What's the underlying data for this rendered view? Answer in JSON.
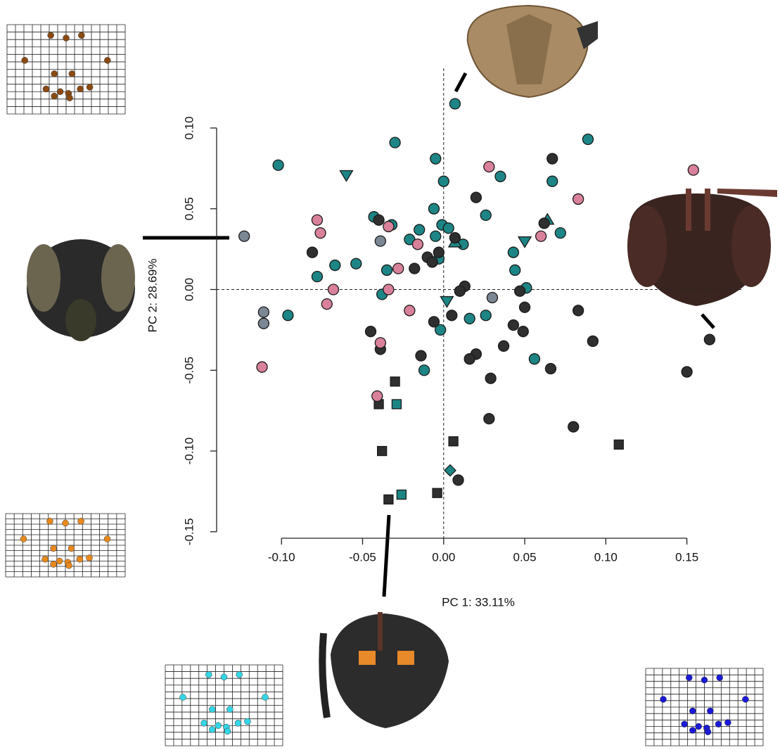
{
  "chart_data": {
    "type": "scatter",
    "x_label": "PC 1: 33.11%",
    "y_label": "PC 2: 28.69%",
    "xlim": [
      -0.14,
      0.184
    ],
    "ylim": [
      -0.154,
      0.137
    ],
    "xticks": [
      {
        "value": -0.1,
        "label": "-0.10"
      },
      -0.05,
      {
        "value": 0,
        "label": "0.00"
      },
      0.05,
      {
        "value": 0.1,
        "label": "0.10"
      },
      0.15
    ],
    "yticks": [
      -0.15,
      {
        "value": -0.1,
        "label": "-0.10"
      },
      -0.05,
      {
        "value": 0,
        "label": "0.00"
      },
      0.05,
      {
        "value": 0.1,
        "label": "0.10"
      }
    ],
    "zero_lines": true,
    "series": [
      {
        "color": "#1d8585",
        "marker": "circle",
        "x": [
          0.007,
          -0.102,
          -0.03,
          -0.005,
          0.0,
          0.035,
          0.067,
          0.089,
          0.026,
          0.072,
          -0.043,
          -0.032,
          -0.015,
          -0.006,
          -0.001,
          -0.005,
          0.003,
          0.012,
          -0.054,
          -0.067,
          -0.078,
          -0.035,
          0.043,
          0.044,
          0.051,
          -0.038,
          -0.096,
          -0.002,
          0.016,
          0.026,
          -0.012,
          0.056,
          -0.021,
          -0.003
        ],
        "values": [
          0.115,
          0.077,
          0.091,
          0.081,
          0.067,
          0.07,
          0.067,
          0.093,
          0.046,
          0.035,
          0.045,
          0.04,
          0.037,
          0.05,
          0.04,
          0.033,
          0.038,
          0.028,
          0.016,
          0.015,
          0.008,
          0.012,
          0.023,
          0.012,
          0.001,
          -0.003,
          -0.016,
          -0.025,
          -0.018,
          -0.016,
          -0.05,
          -0.043,
          0.031,
          0.019
        ]
      },
      {
        "color": "#1d8585",
        "marker": "triangle-down",
        "x": [
          -0.06,
          0.05,
          0.002
        ],
        "values": [
          0.071,
          0.03,
          -0.007
        ]
      },
      {
        "color": "#1d8585",
        "marker": "triangle-up",
        "x": [
          0.064,
          0.007
        ],
        "values": [
          0.043,
          0.029
        ]
      },
      {
        "color": "#1d8585",
        "marker": "square",
        "x": [
          -0.029,
          -0.026
        ],
        "values": [
          -0.071,
          -0.127
        ]
      },
      {
        "color": "#1d8585",
        "marker": "diamond",
        "x": [
          0.004
        ],
        "values": [
          -0.112
        ]
      },
      {
        "color": "#2f2f2f",
        "marker": "circle",
        "x": [
          0.067,
          0.02,
          -0.04,
          0.062,
          0.007,
          -0.081,
          -0.003,
          -0.01,
          -0.007,
          -0.018,
          0.013,
          0.01,
          0.047,
          0.05,
          0.005,
          -0.006,
          0.043,
          0.049,
          -0.045,
          -0.039,
          0.037,
          0.02,
          0.016,
          -0.014,
          0.083,
          0.092,
          0.029,
          0.066,
          0.15,
          0.164,
          0.028,
          0.08,
          0.009
        ],
        "values": [
          0.081,
          0.057,
          0.043,
          0.041,
          0.032,
          0.023,
          0.023,
          0.02,
          0.017,
          0.013,
          0.002,
          -0.001,
          -0.001,
          -0.011,
          -0.016,
          -0.02,
          -0.022,
          -0.026,
          -0.026,
          -0.037,
          -0.035,
          -0.04,
          -0.043,
          -0.041,
          -0.013,
          -0.032,
          -0.055,
          -0.049,
          -0.051,
          -0.031,
          -0.08,
          -0.085,
          -0.118
        ]
      },
      {
        "color": "#2f2f2f",
        "marker": "square",
        "x": [
          -0.03,
          -0.04,
          0.006,
          -0.038,
          0.108,
          -0.034,
          -0.004
        ],
        "values": [
          -0.057,
          -0.071,
          -0.094,
          -0.1,
          -0.096,
          -0.13,
          -0.126
        ]
      },
      {
        "color": "#d9819a",
        "marker": "circle",
        "x": [
          0.154,
          0.028,
          0.083,
          -0.078,
          -0.076,
          -0.034,
          0.06,
          -0.016,
          -0.028,
          -0.068,
          -0.034,
          -0.072,
          -0.021,
          -0.039,
          -0.112,
          -0.041
        ],
        "values": [
          0.074,
          0.076,
          0.056,
          0.043,
          0.035,
          0.039,
          0.033,
          0.028,
          0.013,
          0.0,
          0.0,
          -0.009,
          -0.013,
          -0.033,
          -0.048,
          -0.066
        ]
      },
      {
        "color": "#7b8794",
        "marker": "circle",
        "x": [
          -0.123,
          -0.039,
          0.03,
          -0.111,
          -0.111
        ],
        "values": [
          0.033,
          0.03,
          -0.005,
          -0.014,
          -0.021
        ]
      }
    ]
  }
}
